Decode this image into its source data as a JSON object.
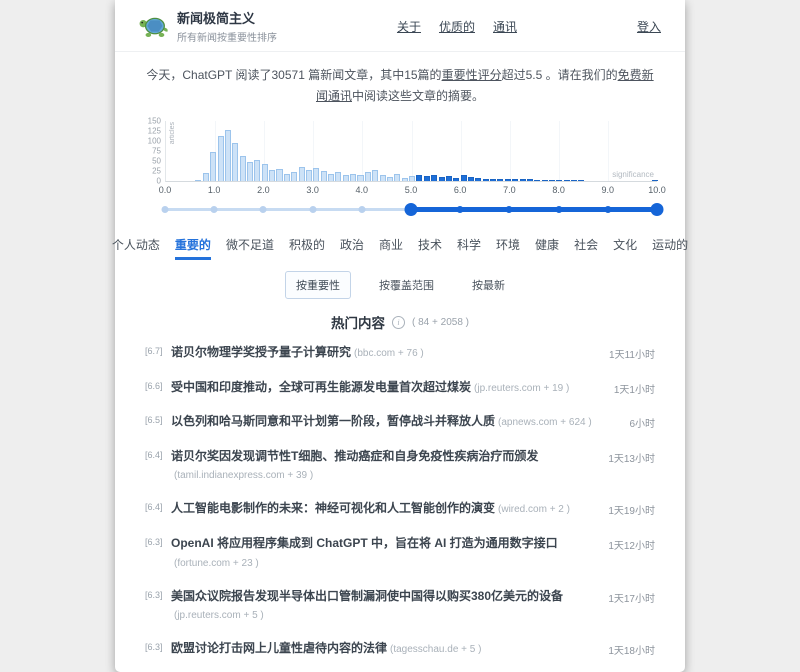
{
  "header": {
    "title": "新闻极简主义",
    "subtitle": "所有新闻按重要性排序",
    "nav": [
      {
        "label": "关于"
      },
      {
        "label": "优质的"
      },
      {
        "label": "通讯"
      }
    ],
    "login_label": "登入"
  },
  "intro": {
    "pre": "今天，ChatGPT 阅读了30571 篇新闻文章，其中15篇的",
    "link1": "重要性评分",
    "mid": "超过5.5 。请在我们的",
    "link2": "免费新闻通讯",
    "post": "中阅读这些文章的摘要。"
  },
  "chart_data": {
    "type": "bar",
    "title": "",
    "xlabel": "significance",
    "ylabel": "articles",
    "xlim": [
      0,
      10
    ],
    "ylim": [
      0,
      150
    ],
    "yticks": [
      0,
      25,
      50,
      75,
      100,
      125,
      150
    ],
    "gridlines": [
      1,
      2,
      3,
      4,
      5,
      6,
      7,
      8,
      9
    ],
    "bin_width": 0.15,
    "threshold": 5.0,
    "bars": [
      [
        0.6,
        2
      ],
      [
        0.75,
        20
      ],
      [
        0.9,
        72
      ],
      [
        1.05,
        113
      ],
      [
        1.2,
        128
      ],
      [
        1.35,
        96
      ],
      [
        1.5,
        63
      ],
      [
        1.65,
        47
      ],
      [
        1.8,
        53
      ],
      [
        1.95,
        43
      ],
      [
        2.1,
        28
      ],
      [
        2.25,
        30
      ],
      [
        2.4,
        18
      ],
      [
        2.55,
        22
      ],
      [
        2.7,
        35
      ],
      [
        2.85,
        28
      ],
      [
        3.0,
        32
      ],
      [
        3.15,
        25
      ],
      [
        3.3,
        18
      ],
      [
        3.45,
        22
      ],
      [
        3.6,
        15
      ],
      [
        3.75,
        18
      ],
      [
        3.9,
        15
      ],
      [
        4.05,
        22
      ],
      [
        4.2,
        28
      ],
      [
        4.35,
        15
      ],
      [
        4.5,
        10
      ],
      [
        4.65,
        18
      ],
      [
        4.8,
        8
      ],
      [
        4.95,
        12
      ],
      [
        5.1,
        15
      ],
      [
        5.25,
        12
      ],
      [
        5.4,
        15
      ],
      [
        5.55,
        10
      ],
      [
        5.7,
        12
      ],
      [
        5.85,
        8
      ],
      [
        6.0,
        15
      ],
      [
        6.15,
        10
      ],
      [
        6.3,
        8
      ],
      [
        6.45,
        6
      ],
      [
        6.6,
        5
      ],
      [
        6.75,
        5
      ],
      [
        6.9,
        4
      ],
      [
        7.05,
        4
      ],
      [
        7.2,
        6
      ],
      [
        7.35,
        4
      ],
      [
        7.5,
        3
      ],
      [
        7.65,
        3
      ],
      [
        7.8,
        2
      ],
      [
        7.95,
        2
      ],
      [
        8.1,
        2
      ],
      [
        8.25,
        1
      ],
      [
        8.4,
        1
      ],
      [
        9.9,
        3
      ]
    ],
    "colors": {
      "bar_light": "#cde2f7",
      "bar_dark": "#1e6fd8"
    }
  },
  "slider": {
    "labels": [
      "0.0",
      "1.0",
      "2.0",
      "3.0",
      "4.0",
      "5.0",
      "6.0",
      "7.0",
      "8.0",
      "9.0",
      "10.0"
    ],
    "range": [
      5.0,
      10.0
    ],
    "accent": "#1565d8"
  },
  "tabs": {
    "active_index": 1,
    "items": [
      {
        "label": "个人动态"
      },
      {
        "label": "重要的"
      },
      {
        "label": "微不足道"
      },
      {
        "label": "积极的"
      },
      {
        "label": "政治"
      },
      {
        "label": "商业"
      },
      {
        "label": "技术"
      },
      {
        "label": "科学"
      },
      {
        "label": "环境"
      },
      {
        "label": "健康"
      },
      {
        "label": "社会"
      },
      {
        "label": "文化"
      },
      {
        "label": "运动的"
      }
    ]
  },
  "sort": {
    "active_index": 0,
    "options": [
      {
        "label": "按重要性"
      },
      {
        "label": "按覆盖范围"
      },
      {
        "label": "按最新"
      }
    ]
  },
  "section": {
    "title": "热门内容",
    "count": "( 84 + 2058 )"
  },
  "articles": [
    {
      "score": "[6.7]",
      "title": "诺贝尔物理学奖授予量子计算研究",
      "source": "(bbc.com + 76 )",
      "age": "1天11小时"
    },
    {
      "score": "[6.6]",
      "title": "受中国和印度推动，全球可再生能源发电量首次超过煤炭",
      "source": "(jp.reuters.com + 19 )",
      "age": "1天1小时"
    },
    {
      "score": "[6.5]",
      "title": "以色列和哈马斯同意和平计划第一阶段，暂停战斗并释放人质",
      "source": "(apnews.com + 624 )",
      "age": "6小时"
    },
    {
      "score": "[6.4]",
      "title": "诺贝尔奖因发现调节性T细胞、推动癌症和自身免疫性疾病治疗而颁发",
      "source": "(tamil.indianexpress.com + 39 )",
      "age": "1天13小时"
    },
    {
      "score": "[6.4]",
      "title": "人工智能电影制作的未来：神经可视化和人工智能创作的演变",
      "source": "(wired.com + 2 )",
      "age": "1天19小时"
    },
    {
      "score": "[6.3]",
      "title": "OpenAI 将应用程序集成到 ChatGPT 中，旨在将 AI 打造为通用数字接口",
      "source": "(fortune.com + 23 )",
      "age": "1天12小时"
    },
    {
      "score": "[6.3]",
      "title": "美国众议院报告发现半导体出口管制漏洞使中国得以购买380亿美元的设备",
      "source": "(jp.reuters.com + 5 )",
      "age": "1天17小时"
    },
    {
      "score": "[6.3]",
      "title": "欧盟讨论打击网上儿童性虐待内容的法律",
      "source": "(tagesschau.de + 5 )",
      "age": "1天18小时"
    }
  ]
}
